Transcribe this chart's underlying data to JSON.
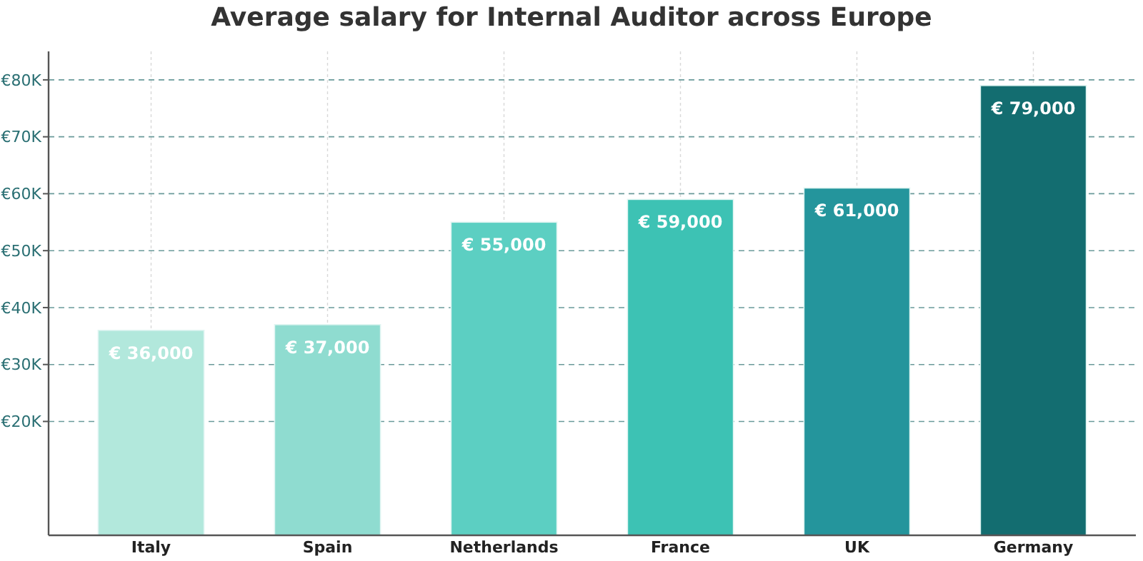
{
  "chart_data": {
    "type": "bar",
    "title": "Average salary for Internal Auditor across Europe",
    "categories": [
      "Italy",
      "Spain",
      "Netherlands",
      "France",
      "UK",
      "Germany"
    ],
    "values": [
      36000,
      37000,
      55000,
      59000,
      61000,
      79000
    ],
    "colors": [
      "#b2e8dc",
      "#8fdcd0",
      "#5ccfc2",
      "#3dc2b4",
      "#24959c",
      "#136d70"
    ],
    "value_labels": [
      "€ 36,000",
      "€ 37,000",
      "€ 55,000",
      "€ 59,000",
      "€ 61,000",
      "€ 79,000"
    ],
    "ylim": [
      0,
      85000
    ],
    "yticks": [
      {
        "value": 20000,
        "label": "€20K"
      },
      {
        "value": 30000,
        "label": "€30K"
      },
      {
        "value": 40000,
        "label": "€40K"
      },
      {
        "value": 50000,
        "label": "€50K"
      },
      {
        "value": 60000,
        "label": "€60K"
      },
      {
        "value": 70000,
        "label": "€70K"
      },
      {
        "value": 80000,
        "label": "€80K"
      }
    ],
    "grid": true
  }
}
